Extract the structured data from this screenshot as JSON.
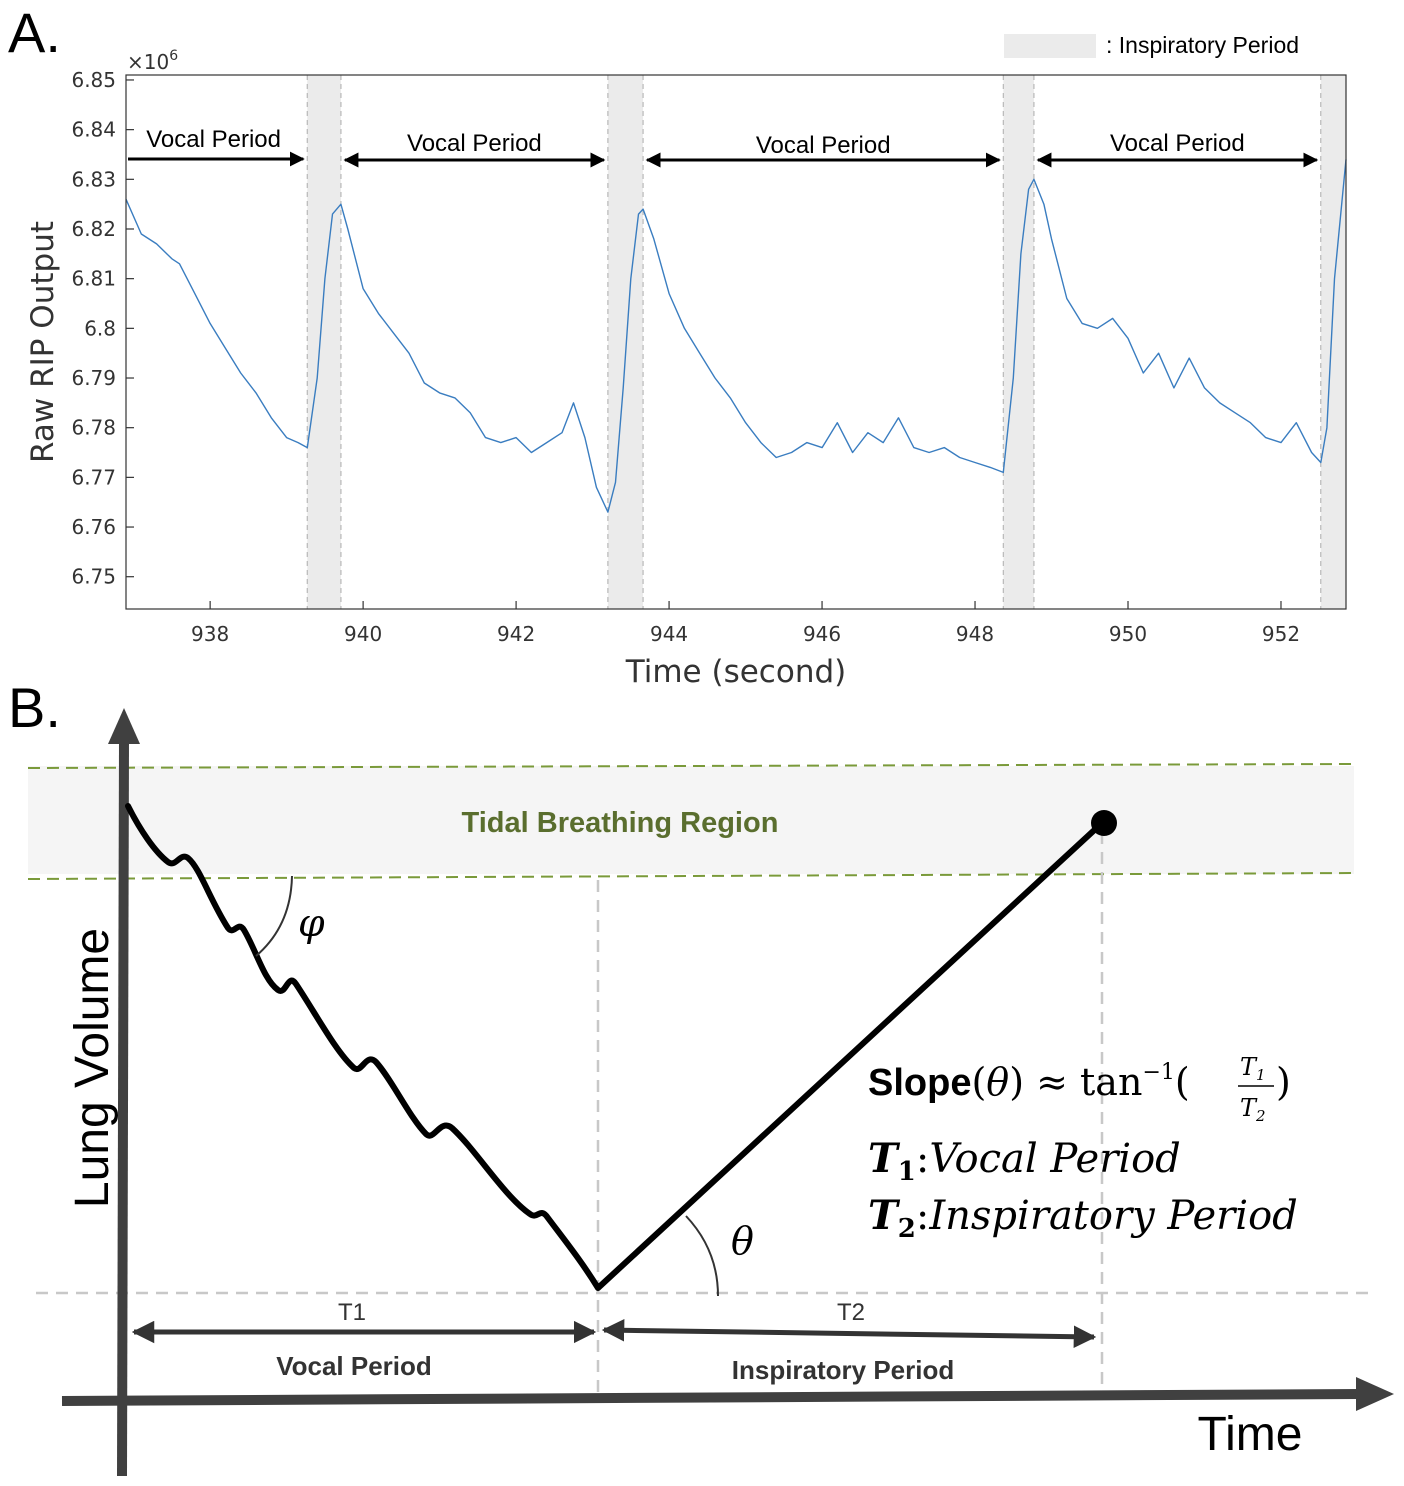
{
  "panel_a": {
    "letter": "A.",
    "chart_data": {
      "type": "line",
      "title": "",
      "xlabel": "Time (second)",
      "ylabel": "Raw RIP Output",
      "y_exponent_label": "×10",
      "y_exponent_power": "6",
      "xlim": [
        936.9,
        952.85
      ],
      "ylim": [
        6.7435,
        6.851
      ],
      "x_ticks": [
        "938",
        "940",
        "942",
        "944",
        "946",
        "948",
        "950",
        "952"
      ],
      "x_tick_values": [
        938,
        940,
        942,
        944,
        946,
        948,
        950,
        952
      ],
      "y_ticks": [
        "6.75",
        "6.76",
        "6.77",
        "6.78",
        "6.79",
        "6.8",
        "6.81",
        "6.82",
        "6.83",
        "6.84",
        "6.85"
      ],
      "y_tick_values": [
        6.75,
        6.76,
        6.77,
        6.78,
        6.79,
        6.8,
        6.81,
        6.82,
        6.83,
        6.84,
        6.85
      ],
      "legend": {
        "label": ": Inspiratory Period",
        "placement": "top-right"
      },
      "inspiratory_periods": [
        [
          939.27,
          939.71
        ],
        [
          943.2,
          943.66
        ],
        [
          948.37,
          948.77
        ],
        [
          952.52,
          952.85
        ]
      ],
      "vocal_labels": [
        {
          "text": "Vocal Period",
          "x_start": 936.9,
          "x_end": 939.27
        },
        {
          "text": "Vocal Period",
          "x_start": 939.71,
          "x_end": 943.2
        },
        {
          "text": "Vocal Period",
          "x_start": 943.66,
          "x_end": 948.37
        },
        {
          "text": "Vocal Period",
          "x_start": 948.77,
          "x_end": 952.52
        }
      ],
      "series": [
        {
          "color": "#3a7dc0",
          "x": [
            936.9,
            937.1,
            937.3,
            937.5,
            937.6,
            937.8,
            938.0,
            938.2,
            938.4,
            938.6,
            938.8,
            939.0,
            939.15,
            939.27,
            939.4,
            939.5,
            939.6,
            939.71,
            939.8,
            940.0,
            940.2,
            940.4,
            940.6,
            940.8,
            941.0,
            941.2,
            941.4,
            941.6,
            941.8,
            942.0,
            942.2,
            942.4,
            942.6,
            942.75,
            942.9,
            943.05,
            943.2,
            943.3,
            943.4,
            943.5,
            943.6,
            943.66,
            943.8,
            944.0,
            944.2,
            944.4,
            944.6,
            944.8,
            945.0,
            945.2,
            945.4,
            945.6,
            945.8,
            946.0,
            946.2,
            946.4,
            946.6,
            946.8,
            947.0,
            947.2,
            947.4,
            947.6,
            947.8,
            948.0,
            948.2,
            948.37,
            948.5,
            948.6,
            948.7,
            948.77,
            948.9,
            949.0,
            949.2,
            949.4,
            949.6,
            949.8,
            950.0,
            950.2,
            950.4,
            950.6,
            950.8,
            951.0,
            951.2,
            951.4,
            951.6,
            951.8,
            952.0,
            952.2,
            952.4,
            952.52,
            952.6,
            952.7,
            952.85
          ],
          "y": [
            6.826,
            6.819,
            6.817,
            6.814,
            6.813,
            6.807,
            6.801,
            6.796,
            6.791,
            6.787,
            6.782,
            6.778,
            6.777,
            6.776,
            6.79,
            6.81,
            6.823,
            6.825,
            6.82,
            6.808,
            6.803,
            6.799,
            6.795,
            6.789,
            6.787,
            6.786,
            6.783,
            6.778,
            6.777,
            6.778,
            6.775,
            6.777,
            6.779,
            6.785,
            6.778,
            6.768,
            6.763,
            6.769,
            6.788,
            6.81,
            6.823,
            6.824,
            6.818,
            6.807,
            6.8,
            6.795,
            6.79,
            6.786,
            6.781,
            6.777,
            6.774,
            6.775,
            6.777,
            6.776,
            6.781,
            6.775,
            6.779,
            6.777,
            6.782,
            6.776,
            6.775,
            6.776,
            6.774,
            6.773,
            6.772,
            6.771,
            6.79,
            6.815,
            6.828,
            6.83,
            6.825,
            6.818,
            6.806,
            6.801,
            6.8,
            6.802,
            6.798,
            6.791,
            6.795,
            6.788,
            6.794,
            6.788,
            6.785,
            6.783,
            6.781,
            6.778,
            6.777,
            6.781,
            6.775,
            6.773,
            6.78,
            6.81,
            6.834
          ]
        }
      ]
    }
  },
  "panel_b": {
    "letter": "B.",
    "region_label": "Tidal Breathing Region",
    "y_axis_label": "Lung Volume",
    "x_axis_label": "Time",
    "t1_label": "T1",
    "t2_label": "T2",
    "t1_period": "Vocal Period",
    "t2_period": "Inspiratory Period",
    "phi_symbol": "φ",
    "theta_symbol": "θ",
    "formula": {
      "slope_word": "Slope",
      "theta": "θ",
      "approx": "≈",
      "func": "tan",
      "inv_power": "−1",
      "t1_var": "T",
      "t1_sub": "1",
      "t2_var": "T",
      "t2_sub": "2",
      "def1_var": "T",
      "def1_sub": "1",
      "def1_text": "Vocal Period",
      "def2_var": "T",
      "def2_sub": "2",
      "def2_text": "Inspiratory Period"
    }
  },
  "colors": {
    "signal_line": "#3a7dc0",
    "inspiratory_shade": "#ebebeb",
    "region_dash": "#7a9a3a",
    "region_fill": "#f5f5f5",
    "axis_dark": "#404040"
  }
}
